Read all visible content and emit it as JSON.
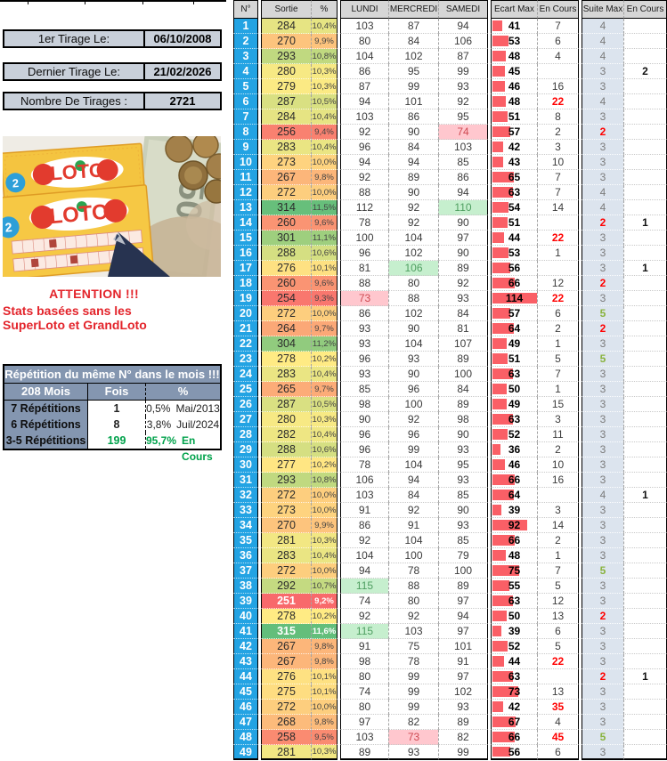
{
  "left_panel": {
    "info_boxes": [
      {
        "label": "1er Tirage Le:",
        "value": "06/10/2008"
      },
      {
        "label": "Dernier Tirage Le:",
        "value": "21/02/2026"
      },
      {
        "label": "Nombre De Tirages :",
        "value": "2721"
      }
    ],
    "photo": {
      "loto_text": "LOTO",
      "bill_text": "50",
      "badge_text": "2"
    },
    "attention": {
      "title": "ATTENTION !!!",
      "line1": "Stats basées sans les",
      "line2": "SuperLoto et GrandLoto"
    },
    "repetition_table": {
      "title": "Répétition du même N° dans le mois !!!",
      "columns": [
        "208 Mois",
        "Fois",
        "%"
      ],
      "rows": [
        {
          "label": "7 Répétitions",
          "fois": "1",
          "pct": "0,5%",
          "note": "Mai/2013",
          "highlight": false
        },
        {
          "label": "6 Répétitions",
          "fois": "8",
          "pct": "3,8%",
          "note": "Juil/2024",
          "highlight": false
        },
        {
          "label": "3-5 Répétitions",
          "fois": "199",
          "pct": "95,7%",
          "note": "En Cours",
          "highlight": true
        }
      ]
    }
  },
  "main_table": {
    "columns": [
      "N°",
      "Sortie",
      "%",
      "LUNDI",
      "MERCREDI",
      "SAMEDI",
      "Ecart Max",
      "En Cours",
      "Suite Max",
      "En Cours"
    ],
    "rows": [
      {
        "n": 1,
        "sortie": 284,
        "pct": "10,4%",
        "lun": 103,
        "mer": 87,
        "sam": 94,
        "ecart": 41,
        "ec": 7,
        "suite": 4,
        "sec": ""
      },
      {
        "n": 2,
        "sortie": 270,
        "pct": "9,9%",
        "lun": 80,
        "mer": 84,
        "sam": 106,
        "ecart": 53,
        "ec": 6,
        "suite": 4,
        "sec": ""
      },
      {
        "n": 3,
        "sortie": 293,
        "pct": "10,8%",
        "lun": 104,
        "mer": 102,
        "sam": 87,
        "ecart": 48,
        "ec": 4,
        "suite": 4,
        "sec": ""
      },
      {
        "n": 4,
        "sortie": 280,
        "pct": "10,3%",
        "lun": 86,
        "mer": 95,
        "sam": 99,
        "ecart": 45,
        "ec": "",
        "suite": 3,
        "sec": 2
      },
      {
        "n": 5,
        "sortie": 279,
        "pct": "10,3%",
        "lun": 87,
        "mer": 99,
        "sam": 93,
        "ecart": 46,
        "ec": 16,
        "suite": 3,
        "sec": ""
      },
      {
        "n": 6,
        "sortie": 287,
        "pct": "10,5%",
        "lun": 94,
        "mer": 101,
        "sam": 92,
        "ecart": 48,
        "ec": 22,
        "suite": 4,
        "sec": ""
      },
      {
        "n": 7,
        "sortie": 284,
        "pct": "10,4%",
        "lun": 103,
        "mer": 86,
        "sam": 95,
        "ecart": 51,
        "ec": 8,
        "suite": 3,
        "sec": ""
      },
      {
        "n": 8,
        "sortie": 256,
        "pct": "9,4%",
        "lun": 92,
        "mer": 90,
        "sam": 74,
        "ecart": 57,
        "ec": 2,
        "suite": 2,
        "sec": ""
      },
      {
        "n": 9,
        "sortie": 283,
        "pct": "10,4%",
        "lun": 96,
        "mer": 84,
        "sam": 103,
        "ecart": 42,
        "ec": 3,
        "suite": 3,
        "sec": ""
      },
      {
        "n": 10,
        "sortie": 273,
        "pct": "10,0%",
        "lun": 94,
        "mer": 94,
        "sam": 85,
        "ecart": 43,
        "ec": 10,
        "suite": 3,
        "sec": ""
      },
      {
        "n": 11,
        "sortie": 267,
        "pct": "9,8%",
        "lun": 92,
        "mer": 89,
        "sam": 86,
        "ecart": 65,
        "ec": 7,
        "suite": 3,
        "sec": ""
      },
      {
        "n": 12,
        "sortie": 272,
        "pct": "10,0%",
        "lun": 88,
        "mer": 90,
        "sam": 94,
        "ecart": 63,
        "ec": 7,
        "suite": 4,
        "sec": ""
      },
      {
        "n": 13,
        "sortie": 314,
        "pct": "11,5%",
        "lun": 112,
        "mer": 92,
        "sam": 110,
        "ecart": 54,
        "ec": 14,
        "suite": 4,
        "sec": ""
      },
      {
        "n": 14,
        "sortie": 260,
        "pct": "9,6%",
        "lun": 78,
        "mer": 92,
        "sam": 90,
        "ecart": 51,
        "ec": "",
        "suite": 2,
        "sec": 1
      },
      {
        "n": 15,
        "sortie": 301,
        "pct": "11,1%",
        "lun": 100,
        "mer": 104,
        "sam": 97,
        "ecart": 44,
        "ec": 22,
        "suite": 3,
        "sec": ""
      },
      {
        "n": 16,
        "sortie": 288,
        "pct": "10,6%",
        "lun": 96,
        "mer": 102,
        "sam": 90,
        "ecart": 53,
        "ec": 1,
        "suite": 3,
        "sec": ""
      },
      {
        "n": 17,
        "sortie": 276,
        "pct": "10,1%",
        "lun": 81,
        "mer": 106,
        "sam": 89,
        "ecart": 56,
        "ec": "",
        "suite": 3,
        "sec": 1
      },
      {
        "n": 18,
        "sortie": 260,
        "pct": "9,6%",
        "lun": 88,
        "mer": 80,
        "sam": 92,
        "ecart": 66,
        "ec": 12,
        "suite": 2,
        "sec": ""
      },
      {
        "n": 19,
        "sortie": 254,
        "pct": "9,3%",
        "lun": 73,
        "mer": 88,
        "sam": 93,
        "ecart": 114,
        "ec": 22,
        "suite": 3,
        "sec": ""
      },
      {
        "n": 20,
        "sortie": 272,
        "pct": "10,0%",
        "lun": 86,
        "mer": 102,
        "sam": 84,
        "ecart": 57,
        "ec": 6,
        "suite": 5,
        "sec": ""
      },
      {
        "n": 21,
        "sortie": 264,
        "pct": "9,7%",
        "lun": 93,
        "mer": 90,
        "sam": 81,
        "ecart": 64,
        "ec": 2,
        "suite": 2,
        "sec": ""
      },
      {
        "n": 22,
        "sortie": 304,
        "pct": "11,2%",
        "lun": 93,
        "mer": 104,
        "sam": 107,
        "ecart": 49,
        "ec": 1,
        "suite": 3,
        "sec": ""
      },
      {
        "n": 23,
        "sortie": 278,
        "pct": "10,2%",
        "lun": 96,
        "mer": 93,
        "sam": 89,
        "ecart": 51,
        "ec": 5,
        "suite": 5,
        "sec": ""
      },
      {
        "n": 24,
        "sortie": 283,
        "pct": "10,4%",
        "lun": 93,
        "mer": 90,
        "sam": 100,
        "ecart": 63,
        "ec": 7,
        "suite": 3,
        "sec": ""
      },
      {
        "n": 25,
        "sortie": 265,
        "pct": "9,7%",
        "lun": 85,
        "mer": 96,
        "sam": 84,
        "ecart": 50,
        "ec": 1,
        "suite": 3,
        "sec": ""
      },
      {
        "n": 26,
        "sortie": 287,
        "pct": "10,5%",
        "lun": 98,
        "mer": 100,
        "sam": 89,
        "ecart": 49,
        "ec": 15,
        "suite": 3,
        "sec": ""
      },
      {
        "n": 27,
        "sortie": 280,
        "pct": "10,3%",
        "lun": 90,
        "mer": 92,
        "sam": 98,
        "ecart": 63,
        "ec": 3,
        "suite": 3,
        "sec": ""
      },
      {
        "n": 28,
        "sortie": 282,
        "pct": "10,4%",
        "lun": 96,
        "mer": 96,
        "sam": 90,
        "ecart": 52,
        "ec": 11,
        "suite": 3,
        "sec": ""
      },
      {
        "n": 29,
        "sortie": 288,
        "pct": "10,6%",
        "lun": 96,
        "mer": 99,
        "sam": 93,
        "ecart": 36,
        "ec": 2,
        "suite": 3,
        "sec": ""
      },
      {
        "n": 30,
        "sortie": 277,
        "pct": "10,2%",
        "lun": 78,
        "mer": 104,
        "sam": 95,
        "ecart": 46,
        "ec": 10,
        "suite": 3,
        "sec": ""
      },
      {
        "n": 31,
        "sortie": 293,
        "pct": "10,8%",
        "lun": 106,
        "mer": 94,
        "sam": 93,
        "ecart": 66,
        "ec": 16,
        "suite": 3,
        "sec": ""
      },
      {
        "n": 32,
        "sortie": 272,
        "pct": "10,0%",
        "lun": 103,
        "mer": 84,
        "sam": 85,
        "ecart": 64,
        "ec": "",
        "suite": 4,
        "sec": 1
      },
      {
        "n": 33,
        "sortie": 273,
        "pct": "10,0%",
        "lun": 91,
        "mer": 92,
        "sam": 90,
        "ecart": 39,
        "ec": 3,
        "suite": 3,
        "sec": ""
      },
      {
        "n": 34,
        "sortie": 270,
        "pct": "9,9%",
        "lun": 86,
        "mer": 91,
        "sam": 93,
        "ecart": 92,
        "ec": 14,
        "suite": 3,
        "sec": ""
      },
      {
        "n": 35,
        "sortie": 281,
        "pct": "10,3%",
        "lun": 92,
        "mer": 104,
        "sam": 85,
        "ecart": 66,
        "ec": 2,
        "suite": 3,
        "sec": ""
      },
      {
        "n": 36,
        "sortie": 283,
        "pct": "10,4%",
        "lun": 104,
        "mer": 100,
        "sam": 79,
        "ecart": 48,
        "ec": 1,
        "suite": 3,
        "sec": ""
      },
      {
        "n": 37,
        "sortie": 272,
        "pct": "10,0%",
        "lun": 94,
        "mer": 78,
        "sam": 100,
        "ecart": 75,
        "ec": 7,
        "suite": 5,
        "sec": ""
      },
      {
        "n": 38,
        "sortie": 292,
        "pct": "10,7%",
        "lun": 115,
        "mer": 88,
        "sam": 89,
        "ecart": 55,
        "ec": 5,
        "suite": 3,
        "sec": ""
      },
      {
        "n": 39,
        "sortie": 251,
        "pct": "9,2%",
        "lun": 74,
        "mer": 80,
        "sam": 97,
        "ecart": 63,
        "ec": 12,
        "suite": 3,
        "sec": ""
      },
      {
        "n": 40,
        "sortie": 278,
        "pct": "10,2%",
        "lun": 92,
        "mer": 92,
        "sam": 94,
        "ecart": 50,
        "ec": 13,
        "suite": 2,
        "sec": ""
      },
      {
        "n": 41,
        "sortie": 315,
        "pct": "11,6%",
        "lun": 115,
        "mer": 103,
        "sam": 97,
        "ecart": 39,
        "ec": 6,
        "suite": 3,
        "sec": ""
      },
      {
        "n": 42,
        "sortie": 267,
        "pct": "9,8%",
        "lun": 91,
        "mer": 75,
        "sam": 101,
        "ecart": 52,
        "ec": 5,
        "suite": 3,
        "sec": ""
      },
      {
        "n": 43,
        "sortie": 267,
        "pct": "9,8%",
        "lun": 98,
        "mer": 78,
        "sam": 91,
        "ecart": 44,
        "ec": 22,
        "suite": 3,
        "sec": ""
      },
      {
        "n": 44,
        "sortie": 276,
        "pct": "10,1%",
        "lun": 80,
        "mer": 99,
        "sam": 97,
        "ecart": 63,
        "ec": "",
        "suite": 2,
        "sec": 1
      },
      {
        "n": 45,
        "sortie": 275,
        "pct": "10,1%",
        "lun": 74,
        "mer": 99,
        "sam": 102,
        "ecart": 73,
        "ec": 13,
        "suite": 3,
        "sec": ""
      },
      {
        "n": 46,
        "sortie": 272,
        "pct": "10,0%",
        "lun": 80,
        "mer": 99,
        "sam": 93,
        "ecart": 42,
        "ec": 35,
        "suite": 3,
        "sec": ""
      },
      {
        "n": 47,
        "sortie": 268,
        "pct": "9,8%",
        "lun": 97,
        "mer": 82,
        "sam": 89,
        "ecart": 67,
        "ec": 4,
        "suite": 3,
        "sec": ""
      },
      {
        "n": 48,
        "sortie": 258,
        "pct": "9,5%",
        "lun": 103,
        "mer": 73,
        "sam": 82,
        "ecart": 66,
        "ec": 45,
        "suite": 5,
        "sec": ""
      },
      {
        "n": 49,
        "sortie": 281,
        "pct": "10,3%",
        "lun": 89,
        "mer": 93,
        "sam": 99,
        "ecart": 56,
        "ec": 6,
        "suite": 3,
        "sec": ""
      }
    ]
  },
  "colors": {
    "numero_blue": "#23A3E3",
    "header_gray": "#D6D6D6",
    "scale_min_red": "#F8696B",
    "scale_mid_yellow": "#FFEB84",
    "scale_max_green": "#63BE7B",
    "databar_red": "#FA5F66",
    "suite_bg": "#DCE4EE",
    "good_bg": "#C6EFCE",
    "bad_bg": "#FFC7CE",
    "alert_red": "#FF0000",
    "suite_green": "#89B33E",
    "rep_header_bg": "#8496B0",
    "rep_green": "#00A24B",
    "attention_red": "#E3242B",
    "infobox_bg": "#C9D0DA"
  }
}
